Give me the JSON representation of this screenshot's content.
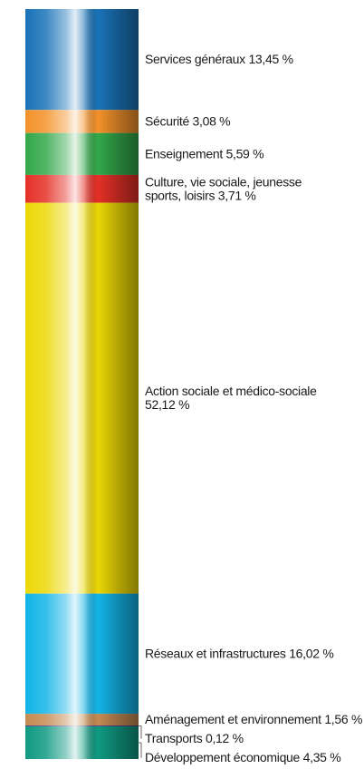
{
  "chart_data": {
    "type": "bar",
    "subtype": "stacked-single-column",
    "unit": "%",
    "segments": [
      {
        "label": "Services généraux 13,45 %",
        "lines": [
          "Services généraux 13,45 %"
        ],
        "value": 13.45,
        "color": "#1a73b8"
      },
      {
        "label": "Sécurité 3,08 %",
        "lines": [
          "Sécurité 3,08 %"
        ],
        "value": 3.08,
        "color": "#f4922a"
      },
      {
        "label": "Enseignement 5,59 %",
        "lines": [
          "Enseignement 5,59 %"
        ],
        "value": 5.59,
        "color": "#33a84a"
      },
      {
        "label": "Culture, vie sociale, jeunesse sports, loisirs 3,71 %",
        "lines": [
          "Culture, vie sociale, jeunesse",
          "sports, loisirs 3,71 %"
        ],
        "value": 3.71,
        "color": "#e53027"
      },
      {
        "label": "Action sociale et médico-sociale 52,12 %",
        "lines": [
          "Action sociale et médico-sociale",
          "52,12 %"
        ],
        "value": 52.12,
        "color": "#ecd806"
      },
      {
        "label": "Réseaux et infrastructures 16,02 %",
        "lines": [
          "Réseaux et infrastructures 16,02 %"
        ],
        "value": 16.02,
        "color": "#12b4e8"
      },
      {
        "label": "Aménagement et environnement 1,56 %",
        "lines": [
          "Aménagement et environnement 1,56 %"
        ],
        "value": 1.56,
        "color": "#c48a52"
      },
      {
        "label": "Transports 0,12 %",
        "lines": [
          "Transports 0,12 %"
        ],
        "value": 0.12,
        "color": "#4f3a8a"
      },
      {
        "label": "Développement économique 4,35 %",
        "lines": [
          "Développement économique 4,35 %"
        ],
        "value": 4.35,
        "color": "#109a82"
      }
    ]
  }
}
